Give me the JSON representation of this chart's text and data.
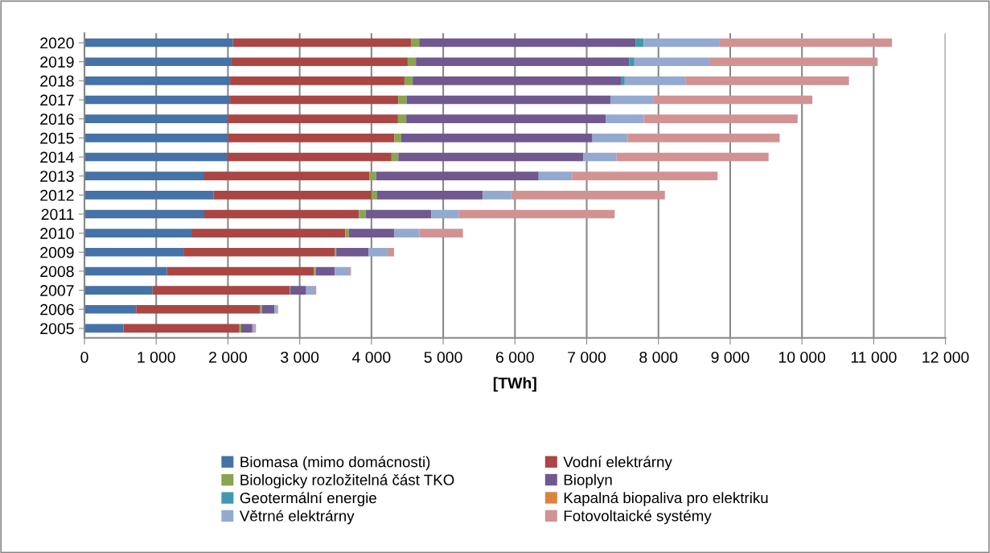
{
  "chart_data": {
    "type": "bar",
    "orientation": "horizontal",
    "stacked": true,
    "xlabel": "[TWh]",
    "categories": [
      "2020",
      "2019",
      "2018",
      "2017",
      "2016",
      "2015",
      "2014",
      "2013",
      "2012",
      "2011",
      "2010",
      "2009",
      "2008",
      "2007",
      "2006",
      "2005"
    ],
    "series": [
      {
        "name": "Biomasa (mimo domácnosti)",
        "color": "#4572a7",
        "values": [
          2070,
          2050,
          2030,
          2030,
          2000,
          2000,
          1985,
          1670,
          1800,
          1670,
          1490,
          1380,
          1150,
          950,
          720,
          545
        ]
      },
      {
        "name": "Vodní elektrárny",
        "color": "#aa4643",
        "values": [
          2480,
          2455,
          2430,
          2345,
          2370,
          2320,
          2295,
          2300,
          2200,
          2155,
          2145,
          2110,
          2050,
          1910,
          1730,
          1615
        ]
      },
      {
        "name": "Biologicky rozložitelná část TKO",
        "color": "#89a54e",
        "values": [
          115,
          115,
          115,
          115,
          115,
          95,
          95,
          95,
          80,
          95,
          50,
          20,
          25,
          10,
          25,
          25
        ]
      },
      {
        "name": "Bioplyn",
        "color": "#71588f",
        "values": [
          3020,
          2975,
          2910,
          2840,
          2780,
          2665,
          2575,
          2265,
          1470,
          915,
          630,
          450,
          265,
          220,
          175,
          155
        ]
      },
      {
        "name": "Geotermální energie",
        "color": "#4198af",
        "values": [
          110,
          70,
          45,
          0,
          0,
          0,
          0,
          0,
          0,
          0,
          0,
          0,
          0,
          0,
          0,
          0
        ]
      },
      {
        "name": "Kapalná biopaliva pro elektriku",
        "color": "#db843d",
        "values": [
          0,
          0,
          0,
          0,
          0,
          0,
          0,
          0,
          0,
          0,
          0,
          0,
          0,
          0,
          0,
          0
        ]
      },
      {
        "name": "Větrné elektrárny",
        "color": "#93a9cf",
        "values": [
          1050,
          1045,
          845,
          605,
          530,
          490,
          465,
          465,
          400,
          380,
          355,
          265,
          210,
          115,
          35,
          30
        ]
      },
      {
        "name": "Fotovoltaické systémy",
        "color": "#d19392",
        "values": [
          2410,
          2345,
          2280,
          2210,
          2145,
          2120,
          2120,
          2030,
          2140,
          2175,
          605,
          90,
          15,
          25,
          15,
          20
        ]
      }
    ],
    "xlim": [
      0,
      12000
    ],
    "xticks": [
      0,
      {
        "value": 1000,
        "label": "1 000"
      },
      {
        "value": 2000,
        "label": "2 000"
      },
      {
        "value": 3000,
        "label": "3 000"
      },
      {
        "value": 4000,
        "label": "4 000"
      },
      {
        "value": 5000,
        "label": "5 000"
      },
      {
        "value": 6000,
        "label": "6 000"
      },
      {
        "value": 7000,
        "label": "7 000"
      },
      {
        "value": 8000,
        "label": "8 000"
      },
      {
        "value": 9000,
        "label": "9 000"
      },
      {
        "value": 10000,
        "label": "10 000"
      },
      {
        "value": 11000,
        "label": "11 000"
      },
      {
        "value": 12000,
        "label": "12 000"
      }
    ],
    "grid": "x",
    "legend": "bottom"
  }
}
